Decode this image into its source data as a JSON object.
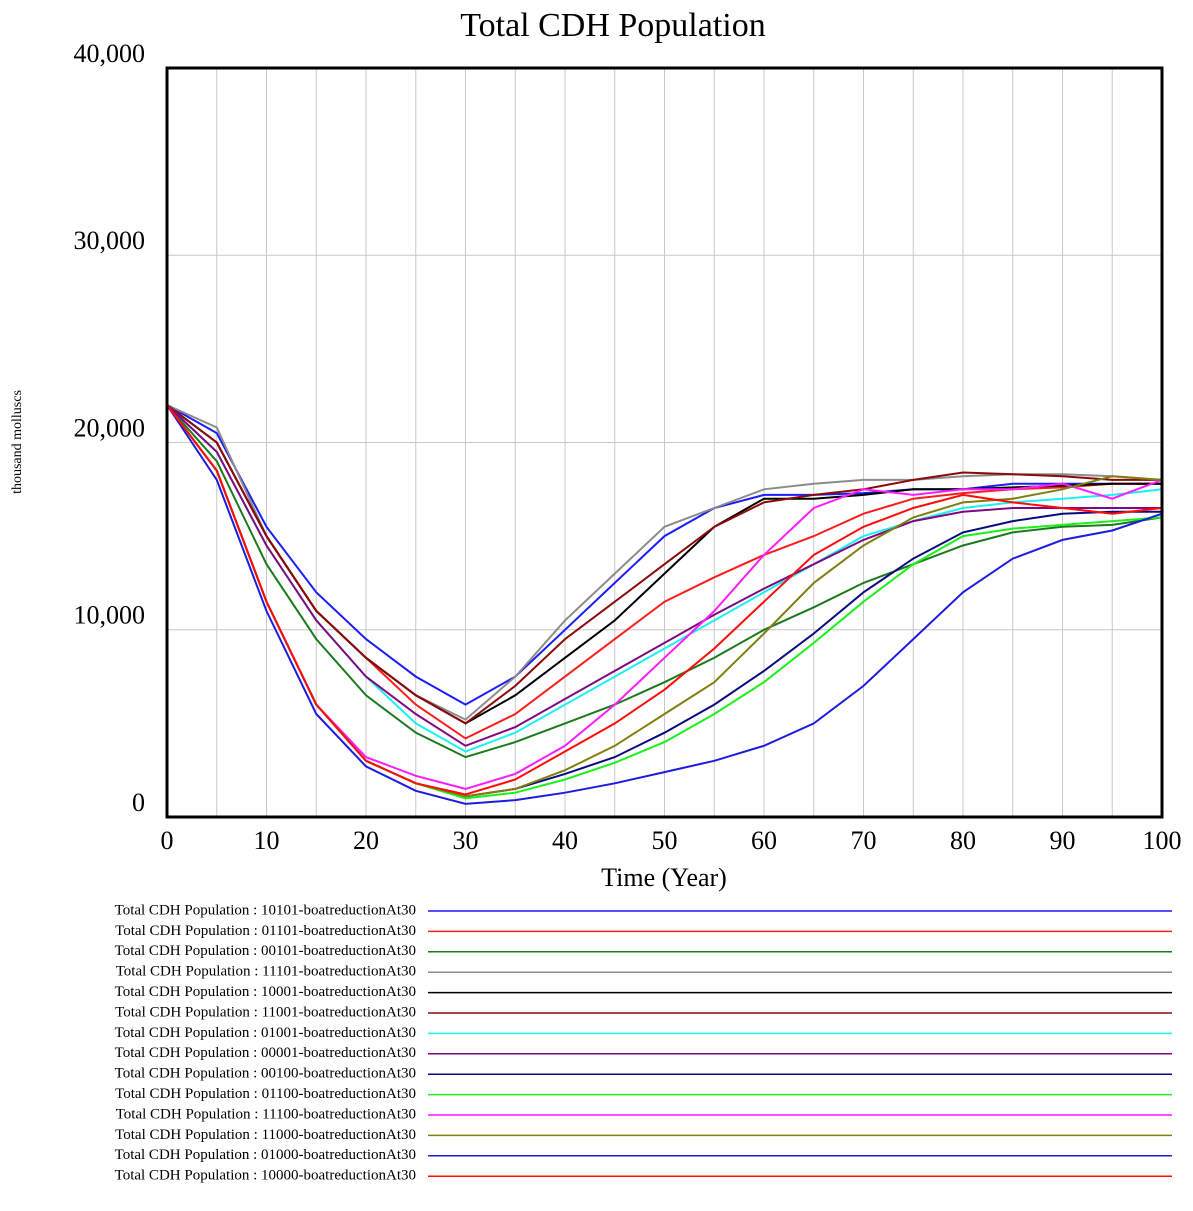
{
  "chart_data": {
    "type": "line",
    "title": "Total CDH Population",
    "x_label": "Time (Year)",
    "y_label": "thousand molluscs",
    "x": [
      0,
      5,
      10,
      15,
      20,
      25,
      30,
      35,
      40,
      45,
      50,
      55,
      60,
      65,
      70,
      75,
      80,
      85,
      90,
      95,
      100
    ],
    "xlim": [
      0,
      100
    ],
    "xticks": [
      0,
      10,
      20,
      30,
      40,
      50,
      60,
      70,
      80,
      90,
      100
    ],
    "ylim": [
      0,
      40000
    ],
    "yticks": [
      0,
      {
        "value": 10000,
        "label": "10,000"
      },
      {
        "value": 20000,
        "label": "20,000"
      },
      {
        "value": 30000,
        "label": "30,000"
      },
      {
        "value": 40000,
        "label": "40,000"
      }
    ],
    "grid": true,
    "series": [
      {
        "name": "Total CDH Population : 10101-boatreductionAt30",
        "color": "#1c1cff",
        "values": [
          22000,
          20500,
          15500,
          12000,
          9500,
          7500,
          6000,
          7500,
          10000,
          12500,
          15000,
          16500,
          17200,
          17200,
          17300,
          17500,
          17500,
          17800,
          17800,
          17800,
          17800
        ]
      },
      {
        "name": "Total CDH Population : 01101-boatreductionAt30",
        "color": "#ff1c1c",
        "values": [
          22000,
          20000,
          15000,
          11000,
          8500,
          6000,
          4200,
          5500,
          7500,
          9500,
          11500,
          12800,
          14000,
          15000,
          16200,
          17000,
          17300,
          17500,
          17600,
          17800,
          17800
        ]
      },
      {
        "name": "Total CDH Population : 00101-boatreductionAt30",
        "color": "#1c7a1c",
        "values": [
          22000,
          19000,
          13500,
          9500,
          6500,
          4500,
          3200,
          4000,
          5000,
          6000,
          7200,
          8500,
          10000,
          11200,
          12500,
          13500,
          14500,
          15200,
          15500,
          15600,
          16000
        ]
      },
      {
        "name": "Total CDH Population : 11101-boatreductionAt30",
        "color": "#8c8c8c",
        "values": [
          22000,
          20800,
          15000,
          11000,
          8500,
          6500,
          5200,
          7500,
          10500,
          13000,
          15500,
          16500,
          17500,
          17800,
          18000,
          18000,
          18200,
          18300,
          18300,
          18200,
          18000
        ]
      },
      {
        "name": "Total CDH Population : 10001-boatreductionAt30",
        "color": "#000000",
        "values": [
          22000,
          20000,
          15000,
          11000,
          8500,
          6500,
          5000,
          6500,
          8500,
          10500,
          13000,
          15500,
          17000,
          17000,
          17200,
          17500,
          17500,
          17600,
          17700,
          17800,
          17800
        ]
      },
      {
        "name": "Total CDH Population : 11001-boatreductionAt30",
        "color": "#8b0a0a",
        "values": [
          22000,
          20000,
          15000,
          11000,
          8500,
          6500,
          5000,
          7000,
          9500,
          11500,
          13500,
          15500,
          16800,
          17200,
          17500,
          18000,
          18400,
          18300,
          18200,
          18000,
          18000
        ]
      },
      {
        "name": "Total CDH Population : 01001-boatreductionAt30",
        "color": "#1cf0f0",
        "values": [
          22000,
          19500,
          14500,
          10500,
          7500,
          5000,
          3500,
          4500,
          6000,
          7500,
          9000,
          10500,
          12000,
          13500,
          15000,
          15800,
          16500,
          16800,
          17000,
          17200,
          17500
        ]
      },
      {
        "name": "Total CDH Population : 00001-boatreductionAt30",
        "color": "#800880",
        "values": [
          22000,
          19500,
          14500,
          10500,
          7500,
          5500,
          3800,
          4800,
          6300,
          7800,
          9300,
          10800,
          12200,
          13500,
          14800,
          15800,
          16300,
          16500,
          16500,
          16500,
          16500
        ]
      },
      {
        "name": "Total CDH Population : 00100-boatreductionAt30",
        "color": "#0a0a80",
        "values": [
          22000,
          18500,
          11500,
          6000,
          3000,
          1800,
          1100,
          1500,
          2300,
          3200,
          4500,
          6000,
          7800,
          9800,
          12000,
          13800,
          15200,
          15800,
          16200,
          16300,
          16300
        ]
      },
      {
        "name": "Total CDH Population : 01100-boatreductionAt30",
        "color": "#1cf01c",
        "values": [
          22000,
          18500,
          11500,
          6000,
          3000,
          1800,
          1000,
          1300,
          2000,
          2900,
          4000,
          5500,
          7200,
          9300,
          11500,
          13500,
          15000,
          15400,
          15600,
          15800,
          16000
        ]
      },
      {
        "name": "Total CDH Population : 11100-boatreductionAt30",
        "color": "#ff1cff",
        "values": [
          22000,
          18500,
          11500,
          6000,
          3200,
          2200,
          1500,
          2300,
          3800,
          6000,
          8500,
          11000,
          14000,
          16500,
          17500,
          17200,
          17500,
          17500,
          17800,
          17000,
          18000
        ]
      },
      {
        "name": "Total CDH Population : 11000-boatreductionAt30",
        "color": "#808010",
        "values": [
          22000,
          18500,
          11500,
          6000,
          3000,
          1800,
          1100,
          1500,
          2500,
          3800,
          5500,
          7200,
          9800,
          12500,
          14500,
          16000,
          16800,
          17000,
          17500,
          18200,
          18000
        ]
      },
      {
        "name": "Total CDH Population : 01000-boatreductionAt30",
        "color": "#1c1ce0",
        "values": [
          22000,
          18000,
          11000,
          5500,
          2700,
          1400,
          700,
          900,
          1300,
          1800,
          2400,
          3000,
          3800,
          5000,
          7000,
          9500,
          12000,
          13800,
          14800,
          15300,
          16200
        ]
      },
      {
        "name": "Total CDH Population : 10000-boatreductionAt30",
        "color": "#ff0a0a",
        "values": [
          22000,
          18500,
          11500,
          6000,
          3000,
          1800,
          1200,
          2000,
          3500,
          5000,
          6800,
          9000,
          11500,
          14000,
          15500,
          16500,
          17200,
          16800,
          16500,
          16200,
          16500
        ]
      }
    ]
  }
}
